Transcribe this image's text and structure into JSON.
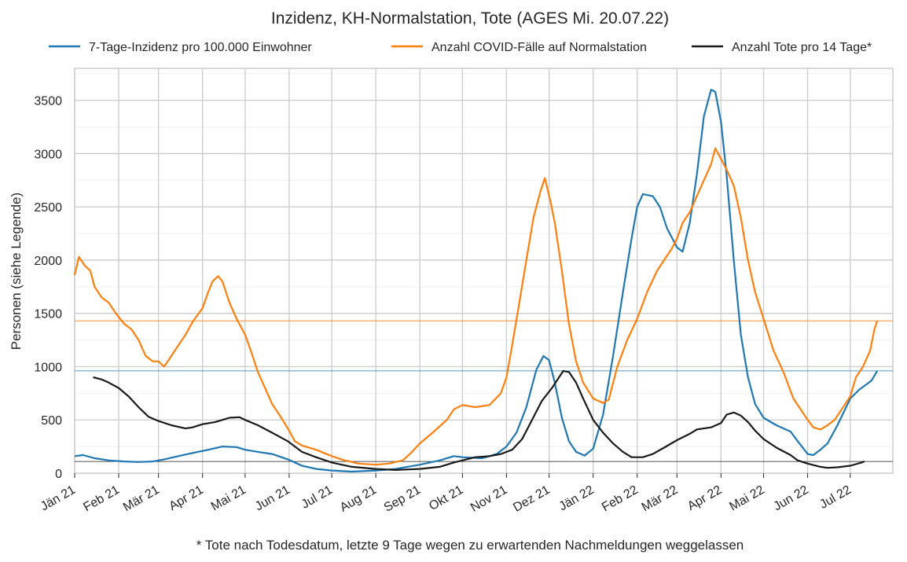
{
  "chart_data": {
    "type": "line",
    "title": "Inzidenz, KH-Normalstation, Tote (AGES Mi. 20.07.22)",
    "ylabel": "Personen (siehe Legende)",
    "xlabel": "",
    "footnote": "* Tote nach Todesdatum, letzte 9 Tage wegen zu erwartenden Nachmeldungen weggelassen",
    "ylim": [
      0,
      3800
    ],
    "xlim": [
      "2021-01-01",
      "2022-07-31"
    ],
    "y_ticks": [
      0,
      500,
      1000,
      1500,
      2000,
      2500,
      3000,
      3500
    ],
    "x_ticks": [
      {
        "date": "2021-01-01",
        "label": "Jän 21"
      },
      {
        "date": "2021-02-01",
        "label": "Feb 21"
      },
      {
        "date": "2021-03-01",
        "label": "Mär 21"
      },
      {
        "date": "2021-04-01",
        "label": "Apr 21"
      },
      {
        "date": "2021-05-01",
        "label": "Mai 21"
      },
      {
        "date": "2021-06-01",
        "label": "Jun 21"
      },
      {
        "date": "2021-07-01",
        "label": "Jul 21"
      },
      {
        "date": "2021-08-01",
        "label": "Aug 21"
      },
      {
        "date": "2021-09-01",
        "label": "Sep 21"
      },
      {
        "date": "2021-10-01",
        "label": "Okt 21"
      },
      {
        "date": "2021-11-01",
        "label": "Nov 21"
      },
      {
        "date": "2021-12-01",
        "label": "Dez 21"
      },
      {
        "date": "2022-01-01",
        "label": "Jän 22"
      },
      {
        "date": "2022-02-01",
        "label": "Feb 22"
      },
      {
        "date": "2022-03-01",
        "label": "Mär 22"
      },
      {
        "date": "2022-04-01",
        "label": "Apr 22"
      },
      {
        "date": "2022-05-01",
        "label": "Mai 22"
      },
      {
        "date": "2022-06-01",
        "label": "Jun 22"
      },
      {
        "date": "2022-07-01",
        "label": "Jul 22"
      }
    ],
    "grid": true,
    "legend_position": "top",
    "series": [
      {
        "name": "7-Tage-Inzidenz pro 100.000 Einwohner",
        "color": "#1f77b4",
        "reference_line": 960,
        "points": [
          [
            "2021-01-01",
            160
          ],
          [
            "2021-01-07",
            170
          ],
          [
            "2021-01-15",
            140
          ],
          [
            "2021-01-25",
            120
          ],
          [
            "2021-02-05",
            110
          ],
          [
            "2021-02-15",
            105
          ],
          [
            "2021-02-25",
            110
          ],
          [
            "2021-03-05",
            130
          ],
          [
            "2021-03-15",
            160
          ],
          [
            "2021-03-25",
            190
          ],
          [
            "2021-04-05",
            220
          ],
          [
            "2021-04-15",
            250
          ],
          [
            "2021-04-25",
            245
          ],
          [
            "2021-05-01",
            220
          ],
          [
            "2021-05-10",
            200
          ],
          [
            "2021-05-20",
            180
          ],
          [
            "2021-05-31",
            130
          ],
          [
            "2021-06-10",
            70
          ],
          [
            "2021-06-20",
            40
          ],
          [
            "2021-07-01",
            25
          ],
          [
            "2021-07-15",
            15
          ],
          [
            "2021-08-01",
            25
          ],
          [
            "2021-08-15",
            40
          ],
          [
            "2021-09-01",
            80
          ],
          [
            "2021-09-15",
            120
          ],
          [
            "2021-09-25",
            160
          ],
          [
            "2021-10-01",
            150
          ],
          [
            "2021-10-15",
            140
          ],
          [
            "2021-10-25",
            180
          ],
          [
            "2021-11-01",
            250
          ],
          [
            "2021-11-08",
            380
          ],
          [
            "2021-11-15",
            620
          ],
          [
            "2021-11-22",
            970
          ],
          [
            "2021-11-27",
            1100
          ],
          [
            "2021-12-01",
            1060
          ],
          [
            "2021-12-05",
            850
          ],
          [
            "2021-12-10",
            520
          ],
          [
            "2021-12-15",
            300
          ],
          [
            "2021-12-20",
            200
          ],
          [
            "2021-12-26",
            165
          ],
          [
            "2022-01-01",
            230
          ],
          [
            "2022-01-08",
            550
          ],
          [
            "2022-01-15",
            1100
          ],
          [
            "2022-01-22",
            1700
          ],
          [
            "2022-01-28",
            2200
          ],
          [
            "2022-02-01",
            2500
          ],
          [
            "2022-02-05",
            2620
          ],
          [
            "2022-02-12",
            2600
          ],
          [
            "2022-02-17",
            2500
          ],
          [
            "2022-02-22",
            2300
          ],
          [
            "2022-03-01",
            2120
          ],
          [
            "2022-03-05",
            2080
          ],
          [
            "2022-03-10",
            2350
          ],
          [
            "2022-03-15",
            2800
          ],
          [
            "2022-03-20",
            3350
          ],
          [
            "2022-03-25",
            3600
          ],
          [
            "2022-03-28",
            3580
          ],
          [
            "2022-04-01",
            3300
          ],
          [
            "2022-04-05",
            2800
          ],
          [
            "2022-04-10",
            2000
          ],
          [
            "2022-04-15",
            1300
          ],
          [
            "2022-04-20",
            900
          ],
          [
            "2022-04-25",
            650
          ],
          [
            "2022-05-01",
            520
          ],
          [
            "2022-05-10",
            450
          ],
          [
            "2022-05-20",
            390
          ],
          [
            "2022-05-25",
            300
          ],
          [
            "2022-06-01",
            180
          ],
          [
            "2022-06-05",
            170
          ],
          [
            "2022-06-10",
            220
          ],
          [
            "2022-06-15",
            280
          ],
          [
            "2022-06-22",
            450
          ],
          [
            "2022-07-01",
            700
          ],
          [
            "2022-07-07",
            780
          ],
          [
            "2022-07-12",
            830
          ],
          [
            "2022-07-16",
            870
          ],
          [
            "2022-07-20",
            960
          ]
        ]
      },
      {
        "name": "Anzahl COVID-Fälle auf Normalstation",
        "color": "#ff7f0e",
        "reference_line": 1430,
        "points": [
          [
            "2021-01-01",
            1860
          ],
          [
            "2021-01-04",
            2030
          ],
          [
            "2021-01-08",
            1950
          ],
          [
            "2021-01-12",
            1900
          ],
          [
            "2021-01-15",
            1750
          ],
          [
            "2021-01-20",
            1650
          ],
          [
            "2021-01-25",
            1600
          ],
          [
            "2021-01-30",
            1500
          ],
          [
            "2021-02-05",
            1400
          ],
          [
            "2021-02-10",
            1350
          ],
          [
            "2021-02-15",
            1250
          ],
          [
            "2021-02-20",
            1100
          ],
          [
            "2021-02-25",
            1050
          ],
          [
            "2021-03-01",
            1050
          ],
          [
            "2021-03-05",
            1000
          ],
          [
            "2021-03-10",
            1100
          ],
          [
            "2021-03-15",
            1200
          ],
          [
            "2021-03-20",
            1300
          ],
          [
            "2021-03-25",
            1420
          ],
          [
            "2021-04-01",
            1550
          ],
          [
            "2021-04-05",
            1700
          ],
          [
            "2021-04-08",
            1800
          ],
          [
            "2021-04-12",
            1850
          ],
          [
            "2021-04-15",
            1800
          ],
          [
            "2021-04-20",
            1600
          ],
          [
            "2021-04-25",
            1450
          ],
          [
            "2021-05-01",
            1300
          ],
          [
            "2021-05-05",
            1150
          ],
          [
            "2021-05-10",
            950
          ],
          [
            "2021-05-15",
            800
          ],
          [
            "2021-05-20",
            650
          ],
          [
            "2021-05-25",
            550
          ],
          [
            "2021-06-01",
            400
          ],
          [
            "2021-06-05",
            300
          ],
          [
            "2021-06-10",
            260
          ],
          [
            "2021-06-20",
            220
          ],
          [
            "2021-07-01",
            160
          ],
          [
            "2021-07-10",
            120
          ],
          [
            "2021-07-20",
            90
          ],
          [
            "2021-08-01",
            80
          ],
          [
            "2021-08-10",
            90
          ],
          [
            "2021-08-20",
            120
          ],
          [
            "2021-08-25",
            180
          ],
          [
            "2021-09-01",
            280
          ],
          [
            "2021-09-10",
            380
          ],
          [
            "2021-09-20",
            500
          ],
          [
            "2021-09-25",
            600
          ],
          [
            "2021-10-01",
            640
          ],
          [
            "2021-10-10",
            620
          ],
          [
            "2021-10-20",
            640
          ],
          [
            "2021-10-28",
            750
          ],
          [
            "2021-11-01",
            900
          ],
          [
            "2021-11-05",
            1200
          ],
          [
            "2021-11-10",
            1600
          ],
          [
            "2021-11-15",
            2000
          ],
          [
            "2021-11-20",
            2400
          ],
          [
            "2021-11-25",
            2650
          ],
          [
            "2021-11-28",
            2770
          ],
          [
            "2021-12-02",
            2550
          ],
          [
            "2021-12-05",
            2350
          ],
          [
            "2021-12-10",
            1900
          ],
          [
            "2021-12-15",
            1400
          ],
          [
            "2021-12-20",
            1050
          ],
          [
            "2021-12-25",
            850
          ],
          [
            "2022-01-01",
            700
          ],
          [
            "2022-01-08",
            660
          ],
          [
            "2022-01-12",
            690
          ],
          [
            "2022-01-18",
            1000
          ],
          [
            "2022-01-25",
            1250
          ],
          [
            "2022-02-01",
            1450
          ],
          [
            "2022-02-08",
            1700
          ],
          [
            "2022-02-15",
            1900
          ],
          [
            "2022-02-20",
            2000
          ],
          [
            "2022-02-25",
            2100
          ],
          [
            "2022-03-01",
            2200
          ],
          [
            "2022-03-05",
            2350
          ],
          [
            "2022-03-10",
            2450
          ],
          [
            "2022-03-15",
            2600
          ],
          [
            "2022-03-20",
            2750
          ],
          [
            "2022-03-25",
            2900
          ],
          [
            "2022-03-28",
            3050
          ],
          [
            "2022-04-01",
            2950
          ],
          [
            "2022-04-05",
            2850
          ],
          [
            "2022-04-10",
            2700
          ],
          [
            "2022-04-15",
            2400
          ],
          [
            "2022-04-20",
            2000
          ],
          [
            "2022-04-25",
            1700
          ],
          [
            "2022-05-01",
            1450
          ],
          [
            "2022-05-08",
            1150
          ],
          [
            "2022-05-15",
            950
          ],
          [
            "2022-05-22",
            700
          ],
          [
            "2022-06-01",
            500
          ],
          [
            "2022-06-05",
            430
          ],
          [
            "2022-06-10",
            410
          ],
          [
            "2022-06-15",
            450
          ],
          [
            "2022-06-20",
            500
          ],
          [
            "2022-06-25",
            600
          ],
          [
            "2022-07-01",
            720
          ],
          [
            "2022-07-05",
            900
          ],
          [
            "2022-07-10",
            1000
          ],
          [
            "2022-07-15",
            1150
          ],
          [
            "2022-07-18",
            1350
          ],
          [
            "2022-07-20",
            1430
          ]
        ]
      },
      {
        "name": "Anzahl Tote pro 14 Tage*",
        "color": "#1a1a1a",
        "reference_line": 110,
        "points": [
          [
            "2021-01-14",
            900
          ],
          [
            "2021-01-20",
            880
          ],
          [
            "2021-01-25",
            850
          ],
          [
            "2021-02-01",
            800
          ],
          [
            "2021-02-08",
            720
          ],
          [
            "2021-02-15",
            620
          ],
          [
            "2021-02-22",
            530
          ],
          [
            "2021-03-01",
            490
          ],
          [
            "2021-03-10",
            450
          ],
          [
            "2021-03-20",
            420
          ],
          [
            "2021-03-25",
            430
          ],
          [
            "2021-04-01",
            460
          ],
          [
            "2021-04-10",
            480
          ],
          [
            "2021-04-15",
            500
          ],
          [
            "2021-04-20",
            520
          ],
          [
            "2021-04-27",
            525
          ],
          [
            "2021-05-01",
            500
          ],
          [
            "2021-05-10",
            450
          ],
          [
            "2021-05-20",
            380
          ],
          [
            "2021-05-31",
            300
          ],
          [
            "2021-06-10",
            200
          ],
          [
            "2021-06-20",
            150
          ],
          [
            "2021-07-01",
            100
          ],
          [
            "2021-07-15",
            60
          ],
          [
            "2021-08-01",
            40
          ],
          [
            "2021-08-15",
            30
          ],
          [
            "2021-09-01",
            40
          ],
          [
            "2021-09-15",
            60
          ],
          [
            "2021-09-25",
            100
          ],
          [
            "2021-10-01",
            120
          ],
          [
            "2021-10-10",
            150
          ],
          [
            "2021-10-20",
            160
          ],
          [
            "2021-10-28",
            180
          ],
          [
            "2021-11-05",
            220
          ],
          [
            "2021-11-12",
            320
          ],
          [
            "2021-11-19",
            500
          ],
          [
            "2021-11-26",
            680
          ],
          [
            "2021-12-03",
            800
          ],
          [
            "2021-12-08",
            900
          ],
          [
            "2021-12-11",
            960
          ],
          [
            "2021-12-15",
            950
          ],
          [
            "2021-12-20",
            850
          ],
          [
            "2021-12-25",
            700
          ],
          [
            "2022-01-01",
            500
          ],
          [
            "2022-01-08",
            380
          ],
          [
            "2022-01-15",
            280
          ],
          [
            "2022-01-22",
            200
          ],
          [
            "2022-01-28",
            150
          ],
          [
            "2022-02-05",
            150
          ],
          [
            "2022-02-12",
            180
          ],
          [
            "2022-02-20",
            240
          ],
          [
            "2022-03-01",
            310
          ],
          [
            "2022-03-10",
            370
          ],
          [
            "2022-03-15",
            410
          ],
          [
            "2022-03-25",
            430
          ],
          [
            "2022-04-01",
            470
          ],
          [
            "2022-04-05",
            550
          ],
          [
            "2022-04-10",
            570
          ],
          [
            "2022-04-15",
            540
          ],
          [
            "2022-04-20",
            480
          ],
          [
            "2022-04-25",
            400
          ],
          [
            "2022-05-01",
            320
          ],
          [
            "2022-05-10",
            240
          ],
          [
            "2022-05-20",
            170
          ],
          [
            "2022-05-25",
            120
          ],
          [
            "2022-06-01",
            90
          ],
          [
            "2022-06-10",
            60
          ],
          [
            "2022-06-15",
            50
          ],
          [
            "2022-06-22",
            55
          ],
          [
            "2022-07-01",
            70
          ],
          [
            "2022-07-05",
            85
          ],
          [
            "2022-07-09",
            100
          ],
          [
            "2022-07-11",
            110
          ]
        ]
      }
    ]
  }
}
